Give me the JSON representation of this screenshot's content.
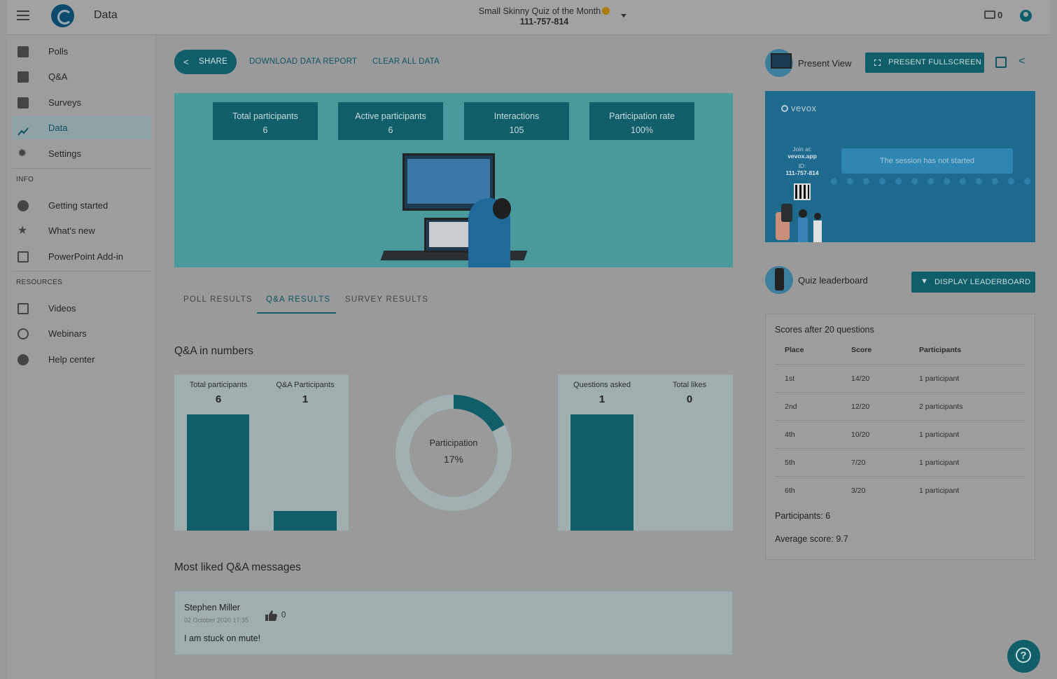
{
  "app": {
    "title": "Data"
  },
  "session": {
    "name": "Small Skinny Quiz of the Month",
    "id": "111-757-814",
    "devices_count": "0"
  },
  "sidebar": {
    "items": [
      {
        "label": "Polls",
        "icon": "polls-icon"
      },
      {
        "label": "Q&A",
        "icon": "qa-icon"
      },
      {
        "label": "Surveys",
        "icon": "surveys-icon"
      },
      {
        "label": "Data",
        "icon": "data-icon"
      },
      {
        "label": "Settings",
        "icon": "gear-icon"
      }
    ],
    "info_heading": "INFO",
    "info_items": [
      {
        "label": "Getting started",
        "icon": "question-icon"
      },
      {
        "label": "What's new",
        "icon": "star-icon"
      },
      {
        "label": "PowerPoint Add-in",
        "icon": "powerpoint-icon"
      }
    ],
    "resources_heading": "RESOURCES",
    "resources_items": [
      {
        "label": "Videos",
        "icon": "video-icon"
      },
      {
        "label": "Webinars",
        "icon": "clock-icon"
      },
      {
        "label": "Help center",
        "icon": "help-icon"
      }
    ]
  },
  "toolbar": {
    "share": "SHARE",
    "download": "DOWNLOAD DATA REPORT",
    "clear": "CLEAR ALL DATA"
  },
  "hero_stats": [
    {
      "label": "Total participants",
      "value": "6"
    },
    {
      "label": "Active participants",
      "value": "6"
    },
    {
      "label": "Interactions",
      "value": "105"
    },
    {
      "label": "Participation rate",
      "value": "100%"
    }
  ],
  "tabs": [
    {
      "label": "POLL RESULTS"
    },
    {
      "label": "Q&A RESULTS"
    },
    {
      "label": "SURVEY RESULTS"
    }
  ],
  "qa_numbers": {
    "heading": "Q&A in numbers",
    "total_participants_label": "Total participants",
    "total_participants": 6,
    "qa_participants_label": "Q&A Participants",
    "qa_participants": 1,
    "participation_label": "Participation",
    "participation_text": "17%",
    "participation_fraction": 0.17,
    "questions_asked_label": "Questions asked",
    "questions_asked": 1,
    "total_likes_label": "Total likes",
    "total_likes": 0
  },
  "most_liked": {
    "heading": "Most liked Q&A messages",
    "messages": [
      {
        "author": "Stephen Miller",
        "date": "02 October 2020 17:35",
        "likes": "0",
        "text": "I am stuck on mute!"
      }
    ]
  },
  "present": {
    "label": "Present View",
    "fullscreen": "PRESENT FULLSCREEN",
    "preview_brand": "vevox",
    "join_at_label": "Join at:",
    "join_url": "vevox.app",
    "id_label": "ID:",
    "id": "111-757-814",
    "status": "The session has not started"
  },
  "leaderboard": {
    "label": "Quiz leaderboard",
    "button": "DISPLAY LEADERBOARD",
    "title": "Scores after 20 questions",
    "headers": [
      "Place",
      "Score",
      "Participants"
    ],
    "rows": [
      {
        "place": "1st",
        "score": "14/20",
        "participants": "1 participant"
      },
      {
        "place": "2nd",
        "score": "12/20",
        "participants": "2 participants"
      },
      {
        "place": "4th",
        "score": "10/20",
        "participants": "1 participant"
      },
      {
        "place": "5th",
        "score": "7/20",
        "participants": "1 participant"
      },
      {
        "place": "6th",
        "score": "3/20",
        "participants": "1 participant"
      }
    ],
    "participants_summary": "Participants: 6",
    "average_summary": "Average score: 9.7"
  },
  "colors": {
    "accent": "#0f5e69",
    "hero_bg": "#4a9a9c",
    "preview_bg": "#1e6a8e"
  }
}
